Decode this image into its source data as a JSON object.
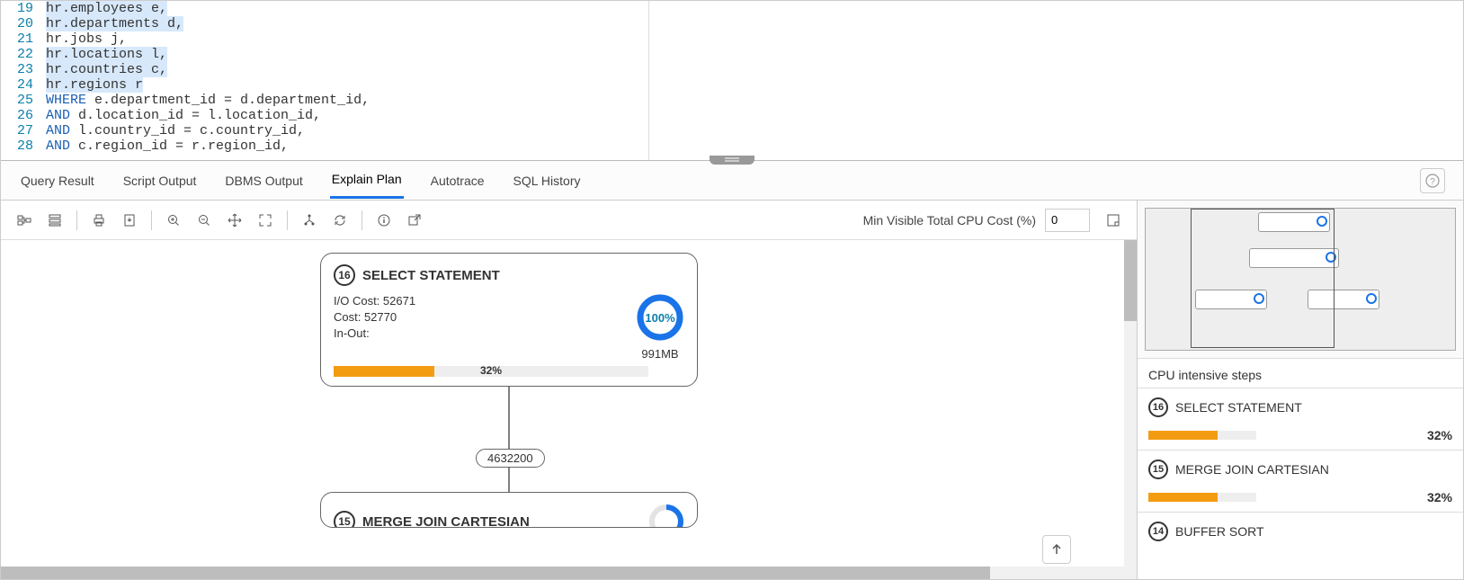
{
  "editor": {
    "lines": [
      {
        "n": 19,
        "hl": true,
        "tokens": [
          {
            "t": "hr",
            "c": ""
          },
          {
            "t": ".employees e,",
            "c": ""
          }
        ]
      },
      {
        "n": 20,
        "hl": true,
        "tokens": [
          {
            "t": "hr",
            "c": ""
          },
          {
            "t": ".departments d,",
            "c": ""
          }
        ]
      },
      {
        "n": 21,
        "hl": false,
        "tokens": [
          {
            "t": "hr",
            "c": ""
          },
          {
            "t": ".jobs j,",
            "c": ""
          }
        ]
      },
      {
        "n": 22,
        "hl": true,
        "tokens": [
          {
            "t": "hr",
            "c": ""
          },
          {
            "t": ".locations l,",
            "c": ""
          }
        ]
      },
      {
        "n": 23,
        "hl": true,
        "tokens": [
          {
            "t": "hr",
            "c": ""
          },
          {
            "t": ".countries c,",
            "c": ""
          }
        ]
      },
      {
        "n": 24,
        "hl": true,
        "tokens": [
          {
            "t": "hr",
            "c": ""
          },
          {
            "t": ".regions r",
            "c": ""
          }
        ]
      },
      {
        "n": 25,
        "hl": false,
        "tokens": [
          {
            "t": "WHERE",
            "c": "kw"
          },
          {
            "t": " e.department_id = d.department_id,",
            "c": ""
          }
        ]
      },
      {
        "n": 26,
        "hl": false,
        "tokens": [
          {
            "t": "AND",
            "c": "kw"
          },
          {
            "t": " d.location_id = l.location_id,",
            "c": ""
          }
        ]
      },
      {
        "n": 27,
        "hl": false,
        "tokens": [
          {
            "t": "AND",
            "c": "kw"
          },
          {
            "t": " l.country_id = c.country_id,",
            "c": ""
          }
        ]
      },
      {
        "n": 28,
        "hl": false,
        "tokens": [
          {
            "t": "AND",
            "c": "kw"
          },
          {
            "t": " c.region_id = r.region_id,",
            "c": ""
          }
        ]
      }
    ]
  },
  "tabs": {
    "items": [
      "Query Result",
      "Script Output",
      "DBMS Output",
      "Explain Plan",
      "Autotrace",
      "SQL History"
    ],
    "active": 3
  },
  "toolbar": {
    "min_cost_label": "Min Visible Total CPU Cost (%)",
    "min_cost_value": "0"
  },
  "plan": {
    "node1": {
      "id": "16",
      "title": "SELECT STATEMENT",
      "io_cost": "I/O Cost: 52671",
      "cost": "Cost: 52770",
      "inout": "In-Out:",
      "ring_pct": 100,
      "ring_label": "100%",
      "ring_color": "#1a73e8",
      "mem": "991MB",
      "bar_pct": 32,
      "bar_label": "32%",
      "bar_color": "#f39c12"
    },
    "edge_label": "4632200",
    "node2": {
      "id": "15",
      "title": "MERGE JOIN CARTESIAN",
      "ring_pct": 60,
      "ring_color": "#1a73e8"
    }
  },
  "side": {
    "cpu_title": "CPU intensive steps",
    "items": [
      {
        "id": "16",
        "name": "SELECT STATEMENT",
        "pct": 32,
        "pct_label": "32%"
      },
      {
        "id": "15",
        "name": "MERGE JOIN CARTESIAN",
        "pct": 32,
        "pct_label": "32%"
      },
      {
        "id": "14",
        "name": "BUFFER SORT",
        "pct": 0,
        "pct_label": ""
      }
    ]
  },
  "colors": {
    "accent": "#1a73e8",
    "bar": "#f39c12",
    "line_num": "#0b7fab"
  }
}
